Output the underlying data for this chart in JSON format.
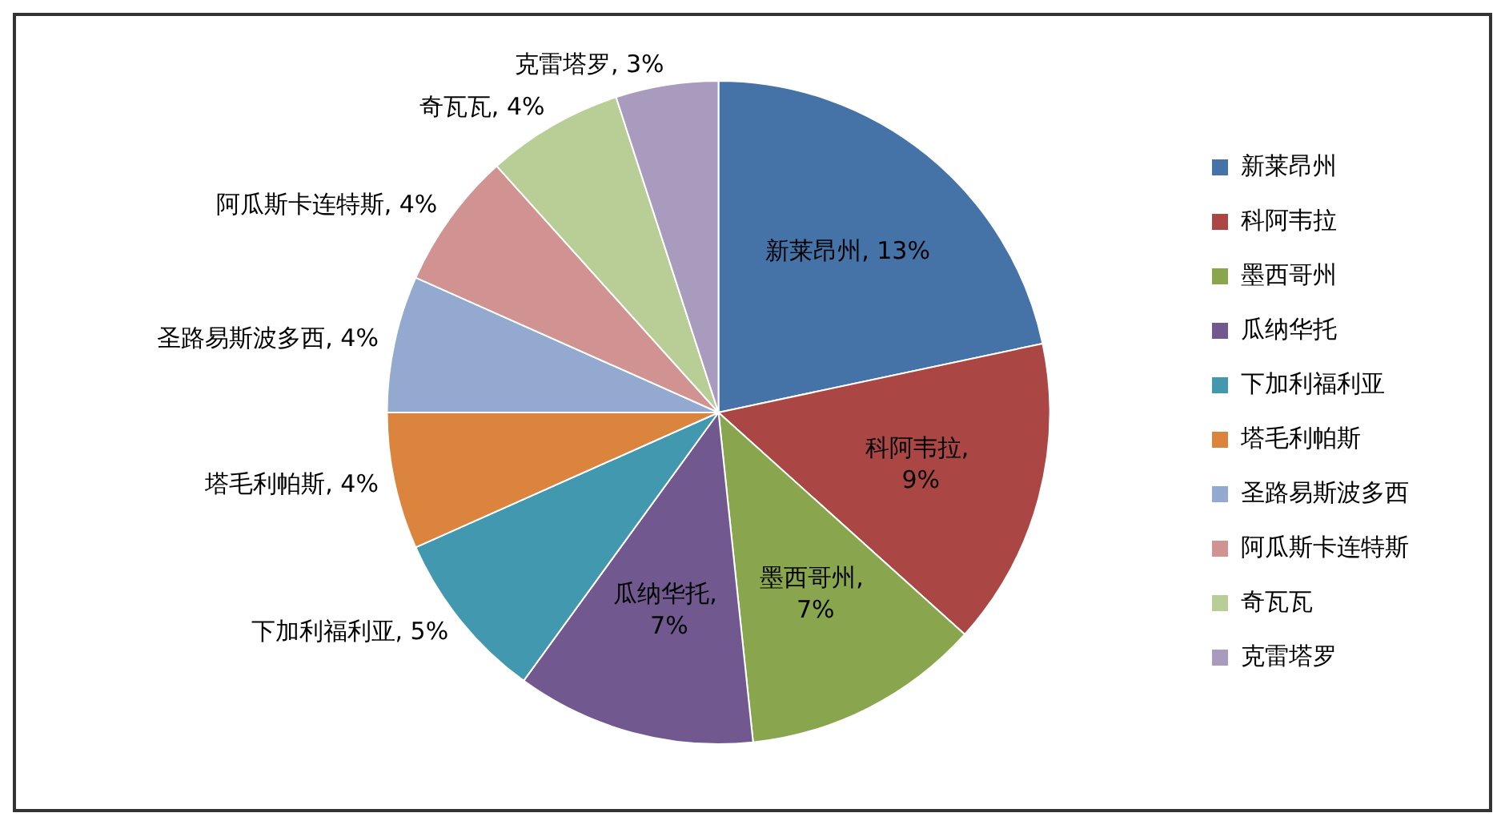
{
  "chart_data": {
    "type": "pie",
    "categories": [
      "新莱昂州",
      "科阿韦拉",
      "墨西哥州",
      "瓜纳华托",
      "下加利福利亚",
      "塔毛利帕斯",
      "圣路易斯波多西",
      "阿瓜斯卡连特斯",
      "奇瓦瓦",
      "克雷塔罗"
    ],
    "values": [
      13,
      9,
      7,
      7,
      5,
      4,
      4,
      4,
      4,
      3
    ],
    "value_labels": [
      "新莱昂州, 13%",
      "科阿韦拉, 9%",
      "墨西哥州, 7%",
      "瓜纳华托, 7%",
      "下加利福利亚, 5%",
      "塔毛利帕斯, 4%",
      "圣路易斯波多西, 4%",
      "阿瓜斯卡连特斯, 4%",
      "奇瓦瓦, 4%",
      "克雷塔罗, 3%"
    ],
    "colors": [
      "#4572a7",
      "#aa4643",
      "#89a54e",
      "#71588f",
      "#4198af",
      "#db843d",
      "#93a9cf",
      "#d19392",
      "#b9cd96",
      "#a99bbd"
    ],
    "legend": "right"
  }
}
